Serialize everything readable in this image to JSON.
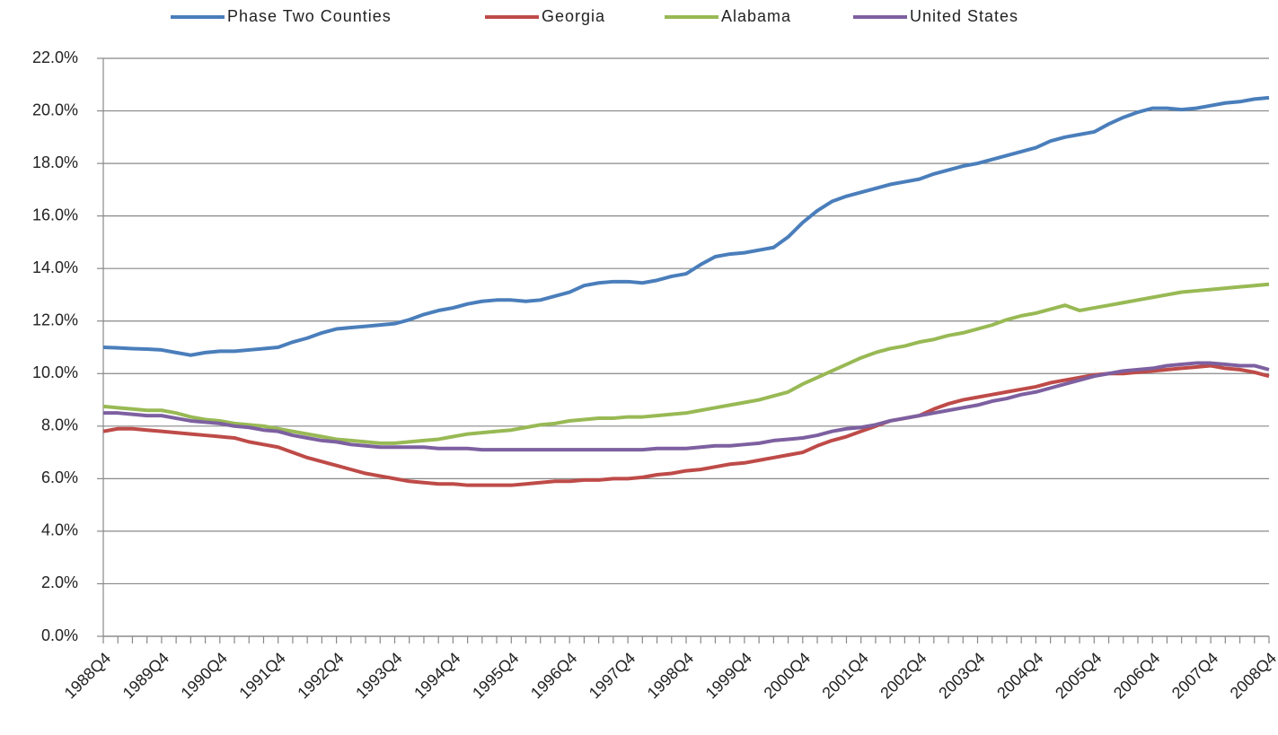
{
  "chart_data": {
    "type": "line",
    "categories": [
      "1988Q4",
      null,
      null,
      null,
      "1989Q4",
      null,
      null,
      null,
      "1990Q4",
      null,
      null,
      null,
      "1991Q4",
      null,
      null,
      null,
      "1992Q4",
      null,
      null,
      null,
      "1993Q4",
      null,
      null,
      null,
      "1994Q4",
      null,
      null,
      null,
      "1995Q4",
      null,
      null,
      null,
      "1996Q4",
      null,
      null,
      null,
      "1997Q4",
      null,
      null,
      null,
      "1998Q4",
      null,
      null,
      null,
      "1999Q4",
      null,
      null,
      null,
      "2000Q4",
      null,
      null,
      null,
      "2001Q4",
      null,
      null,
      null,
      "2002Q4",
      null,
      null,
      null,
      "2003Q4",
      null,
      null,
      null,
      "2004Q4",
      null,
      null,
      null,
      "2005Q4",
      null,
      null,
      null,
      "2006Q4",
      null,
      null,
      null,
      "2007Q4",
      null,
      null,
      null,
      "2008Q4"
    ],
    "series": [
      {
        "name": "Phase Two Counties",
        "color": "#4a7ebb",
        "values": [
          11.0,
          10.98,
          10.95,
          10.93,
          10.9,
          10.8,
          10.7,
          10.8,
          10.85,
          10.85,
          10.9,
          10.95,
          11.0,
          11.2,
          11.35,
          11.55,
          11.7,
          11.75,
          11.8,
          11.85,
          11.9,
          12.05,
          12.25,
          12.4,
          12.5,
          12.65,
          12.75,
          12.8,
          12.8,
          12.75,
          12.8,
          12.95,
          13.1,
          13.35,
          13.45,
          13.5,
          13.5,
          13.45,
          13.55,
          13.7,
          13.8,
          14.15,
          14.45,
          14.55,
          14.6,
          14.7,
          14.8,
          15.2,
          15.75,
          16.2,
          16.55,
          16.75,
          16.9,
          17.05,
          17.2,
          17.3,
          17.4,
          17.6,
          17.75,
          17.9,
          18.0,
          18.15,
          18.3,
          18.45,
          18.6,
          18.85,
          19.0,
          19.1,
          19.2,
          19.5,
          19.75,
          19.95,
          20.1,
          20.1,
          20.05,
          20.1,
          20.2,
          20.3,
          20.35,
          20.45,
          20.5
        ]
      },
      {
        "name": "Georgia",
        "color": "#be4b48",
        "values": [
          7.8,
          7.9,
          7.9,
          7.85,
          7.8,
          7.75,
          7.7,
          7.65,
          7.6,
          7.55,
          7.4,
          7.3,
          7.2,
          7.0,
          6.8,
          6.65,
          6.5,
          6.35,
          6.2,
          6.1,
          6.0,
          5.9,
          5.85,
          5.8,
          5.8,
          5.75,
          5.75,
          5.75,
          5.75,
          5.8,
          5.85,
          5.9,
          5.9,
          5.95,
          5.95,
          6.0,
          6.0,
          6.05,
          6.15,
          6.2,
          6.3,
          6.35,
          6.45,
          6.55,
          6.6,
          6.7,
          6.8,
          6.9,
          7.0,
          7.25,
          7.45,
          7.6,
          7.8,
          8.0,
          8.2,
          8.3,
          8.4,
          8.65,
          8.85,
          9.0,
          9.1,
          9.2,
          9.3,
          9.4,
          9.5,
          9.65,
          9.75,
          9.85,
          9.95,
          10.0,
          10.0,
          10.05,
          10.1,
          10.15,
          10.2,
          10.25,
          10.3,
          10.2,
          10.15,
          10.05,
          9.9
        ]
      },
      {
        "name": "Alabama",
        "color": "#98b954",
        "values": [
          8.75,
          8.7,
          8.65,
          8.6,
          8.6,
          8.5,
          8.35,
          8.25,
          8.2,
          8.1,
          8.05,
          8.0,
          7.9,
          7.8,
          7.7,
          7.6,
          7.5,
          7.45,
          7.4,
          7.35,
          7.35,
          7.4,
          7.45,
          7.5,
          7.6,
          7.7,
          7.75,
          7.8,
          7.85,
          7.95,
          8.05,
          8.1,
          8.2,
          8.25,
          8.3,
          8.3,
          8.35,
          8.35,
          8.4,
          8.45,
          8.5,
          8.6,
          8.7,
          8.8,
          8.9,
          9.0,
          9.15,
          9.3,
          9.6,
          9.85,
          10.1,
          10.35,
          10.6,
          10.8,
          10.95,
          11.05,
          11.2,
          11.3,
          11.45,
          11.55,
          11.7,
          11.85,
          12.05,
          12.2,
          12.3,
          12.45,
          12.6,
          12.4,
          12.5,
          12.6,
          12.7,
          12.8,
          12.9,
          13.0,
          13.1,
          13.15,
          13.2,
          13.25,
          13.3,
          13.35,
          13.4
        ]
      },
      {
        "name": "United States",
        "color": "#7d60a0",
        "values": [
          8.5,
          8.5,
          8.45,
          8.4,
          8.4,
          8.3,
          8.2,
          8.15,
          8.1,
          8.0,
          7.95,
          7.85,
          7.8,
          7.65,
          7.55,
          7.45,
          7.4,
          7.3,
          7.25,
          7.2,
          7.2,
          7.2,
          7.2,
          7.15,
          7.15,
          7.15,
          7.1,
          7.1,
          7.1,
          7.1,
          7.1,
          7.1,
          7.1,
          7.1,
          7.1,
          7.1,
          7.1,
          7.1,
          7.15,
          7.15,
          7.15,
          7.2,
          7.25,
          7.25,
          7.3,
          7.35,
          7.45,
          7.5,
          7.55,
          7.65,
          7.8,
          7.9,
          7.95,
          8.05,
          8.2,
          8.3,
          8.4,
          8.5,
          8.6,
          8.7,
          8.8,
          8.95,
          9.05,
          9.2,
          9.3,
          9.45,
          9.6,
          9.75,
          9.9,
          10.0,
          10.1,
          10.15,
          10.2,
          10.3,
          10.35,
          10.4,
          10.4,
          10.35,
          10.3,
          10.3,
          10.15
        ]
      }
    ],
    "ylim": [
      0,
      22
    ],
    "yticks": [
      {
        "value": 0,
        "label": "0.0%"
      },
      {
        "value": 2,
        "label": "2.0%"
      },
      {
        "value": 4,
        "label": "4.0%"
      },
      {
        "value": 6,
        "label": "6.0%"
      },
      {
        "value": 8,
        "label": "8.0%"
      },
      {
        "value": 10,
        "label": "10.0%"
      },
      {
        "value": 12,
        "label": "12.0%"
      },
      {
        "value": 14,
        "label": "14.0%"
      },
      {
        "value": 16,
        "label": "16.0%"
      },
      {
        "value": 18,
        "label": "18.0%"
      },
      {
        "value": 20,
        "label": "20.0%"
      },
      {
        "value": 22,
        "label": "22.0%"
      }
    ],
    "grid": true,
    "legend": "top"
  }
}
